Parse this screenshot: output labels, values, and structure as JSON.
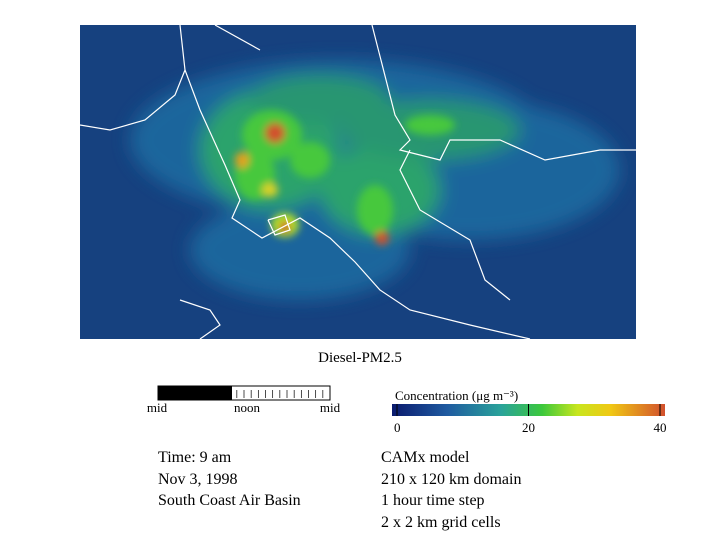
{
  "map": {
    "title": "Diesel-PM2.5"
  },
  "clock": {
    "labels": [
      "mid",
      "noon",
      "mid"
    ]
  },
  "colorbar": {
    "label": "Concentration (μg m⁻³)",
    "ticks": [
      0,
      20,
      40
    ]
  },
  "info": {
    "lines": [
      "Time: 9 am",
      "Nov 3, 1998",
      "South Coast Air Basin"
    ]
  },
  "model": {
    "lines": [
      "CAMx model",
      "210 x 120 km domain",
      "1 hour time step",
      "2 x 2 km grid cells"
    ]
  }
}
